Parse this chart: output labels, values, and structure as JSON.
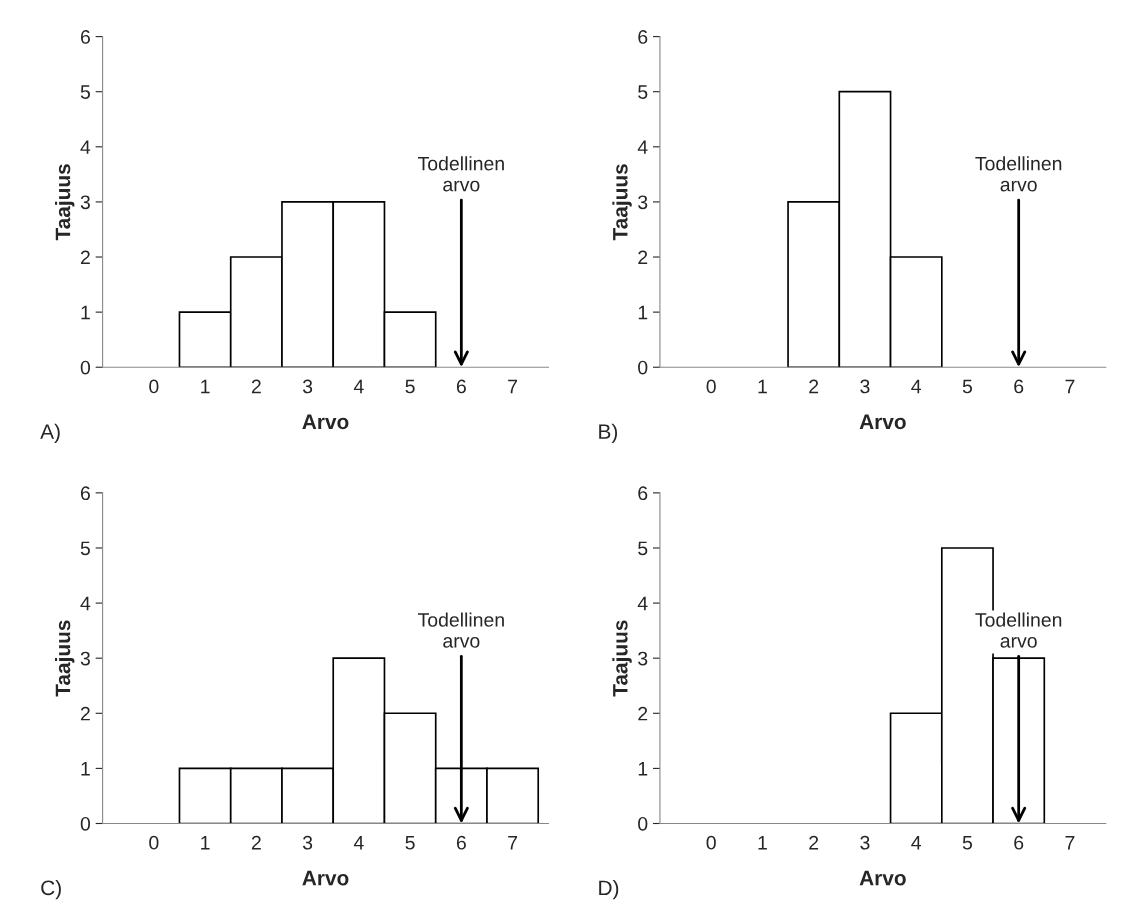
{
  "chart_data": [
    {
      "type": "bar",
      "categories": [
        "0",
        "1",
        "2",
        "3",
        "4",
        "5",
        "6",
        "7"
      ],
      "values": [
        0,
        1,
        2,
        3,
        3,
        1,
        0,
        0
      ],
      "color": "#ffffff",
      "xlabel": "Arvo",
      "ylabel": "Taajuus",
      "ylim": [
        0,
        6
      ],
      "yticks": [
        0,
        1,
        2,
        3,
        4,
        5,
        6
      ],
      "grid": false,
      "annotations": [
        {
          "text": "Todellinen\narvo",
          "x": "6",
          "y": 0
        },
        "A)"
      ]
    },
    {
      "type": "bar",
      "categories": [
        "0",
        "1",
        "2",
        "3",
        "4",
        "5",
        "6",
        "7"
      ],
      "values": [
        0,
        0,
        3,
        5,
        2,
        0,
        0,
        0
      ],
      "color": "#ffffff",
      "xlabel": "Arvo",
      "ylabel": "Taajuus",
      "ylim": [
        0,
        6
      ],
      "yticks": [
        0,
        1,
        2,
        3,
        4,
        5,
        6
      ],
      "grid": false,
      "annotations": [
        {
          "text": "Todellinen\narvo",
          "x": "6",
          "y": 0
        },
        "B)"
      ]
    },
    {
      "type": "bar",
      "categories": [
        "0",
        "1",
        "2",
        "3",
        "4",
        "5",
        "6",
        "7"
      ],
      "values": [
        0,
        1,
        1,
        1,
        3,
        2,
        1,
        1
      ],
      "color": "#ffffff",
      "xlabel": "Arvo",
      "ylabel": "Taajuus",
      "ylim": [
        0,
        6
      ],
      "yticks": [
        0,
        1,
        2,
        3,
        4,
        5,
        6
      ],
      "grid": false,
      "annotations": [
        {
          "text": "Todellinen\narvo",
          "x": "6",
          "y": 0
        },
        "C)"
      ]
    },
    {
      "type": "bar",
      "categories": [
        "0",
        "1",
        "2",
        "3",
        "4",
        "5",
        "6",
        "7"
      ],
      "values": [
        0,
        0,
        0,
        0,
        2,
        5,
        3,
        0
      ],
      "color": "#ffffff",
      "xlabel": "Arvo",
      "ylabel": "Taajuus",
      "ylim": [
        0,
        6
      ],
      "yticks": [
        0,
        1,
        2,
        3,
        4,
        5,
        6
      ],
      "grid": false,
      "annotations": [
        {
          "text": "Todellinen\narvo",
          "x": "6",
          "y": 0
        },
        "D)"
      ]
    }
  ]
}
